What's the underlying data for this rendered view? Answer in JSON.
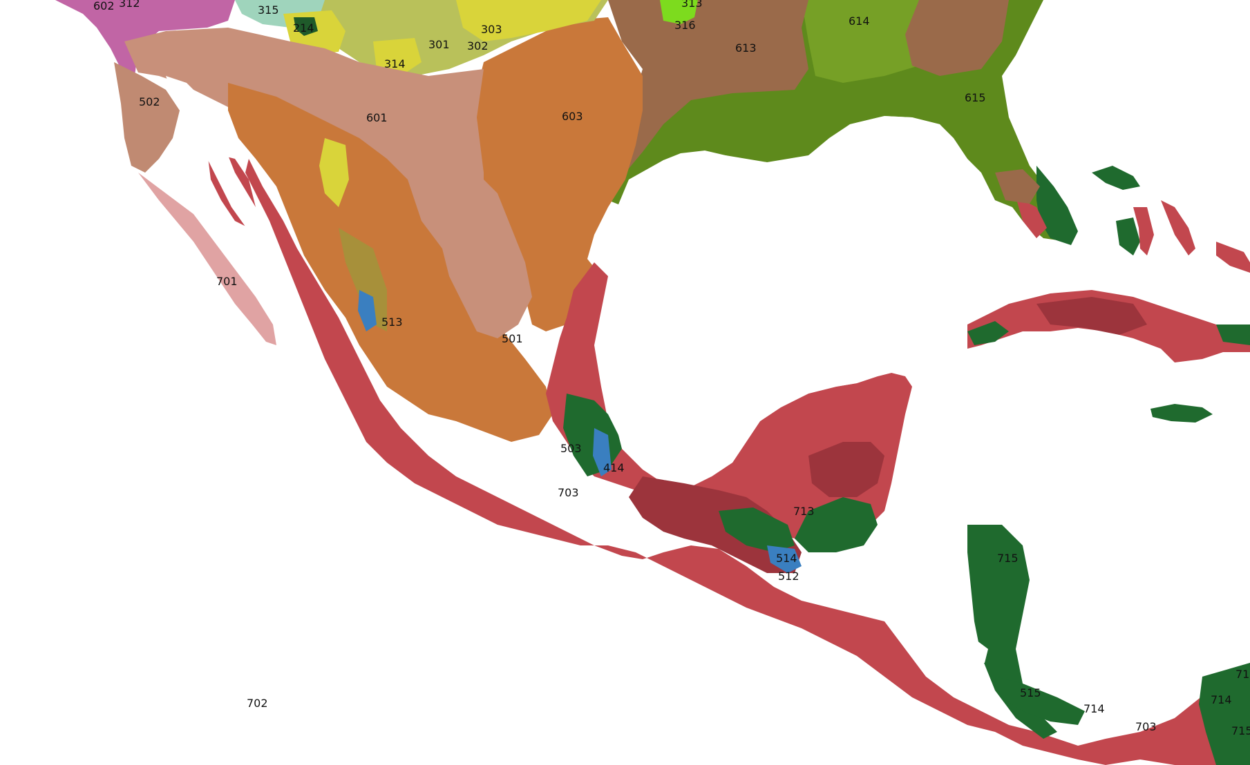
{
  "colors": {
    "ocean": "#ffffff",
    "tropical_dry_red": "#c2474e",
    "tropical_dark_red": "#9c343c",
    "desert_orange": "#c9783a",
    "desert_pink": "#c8907a",
    "pale_pink": "#e0a3a3",
    "brown": "#9a6a4a",
    "olive_green": "#5e8a1c",
    "dark_green": "#1f6a2e",
    "yellow_green": "#b9c15a",
    "yellow": "#d9d43a",
    "light_green": "#8fbf3a",
    "magenta": "#c165a5",
    "blue": "#3a7fc0"
  },
  "region_labels": [
    {
      "id": "r602",
      "text": "602"
    },
    {
      "id": "r312",
      "text": "312"
    },
    {
      "id": "r315",
      "text": "315"
    },
    {
      "id": "r214",
      "text": "214"
    },
    {
      "id": "r313",
      "text": "313"
    },
    {
      "id": "r316",
      "text": "316"
    },
    {
      "id": "r614",
      "text": "614"
    },
    {
      "id": "r303",
      "text": "303"
    },
    {
      "id": "r301",
      "text": "301"
    },
    {
      "id": "r302",
      "text": "302"
    },
    {
      "id": "r613",
      "text": "613"
    },
    {
      "id": "r314",
      "text": "314"
    },
    {
      "id": "r502",
      "text": "502"
    },
    {
      "id": "r615",
      "text": "615"
    },
    {
      "id": "r601",
      "text": "601"
    },
    {
      "id": "r603",
      "text": "603"
    },
    {
      "id": "r701",
      "text": "701"
    },
    {
      "id": "r513",
      "text": "513"
    },
    {
      "id": "r501",
      "text": "501"
    },
    {
      "id": "r503",
      "text": "503"
    },
    {
      "id": "r414",
      "text": "414"
    },
    {
      "id": "r703a",
      "text": "703"
    },
    {
      "id": "r713",
      "text": "713"
    },
    {
      "id": "r514",
      "text": "514"
    },
    {
      "id": "r512",
      "text": "512"
    },
    {
      "id": "r715a",
      "text": "715"
    },
    {
      "id": "r702",
      "text": "702"
    },
    {
      "id": "r515",
      "text": "515"
    },
    {
      "id": "r714a",
      "text": "714"
    },
    {
      "id": "r714b",
      "text": "714"
    },
    {
      "id": "r703b",
      "text": "703"
    },
    {
      "id": "r715b",
      "text": "715"
    },
    {
      "id": "r71c",
      "text": "71"
    }
  ]
}
